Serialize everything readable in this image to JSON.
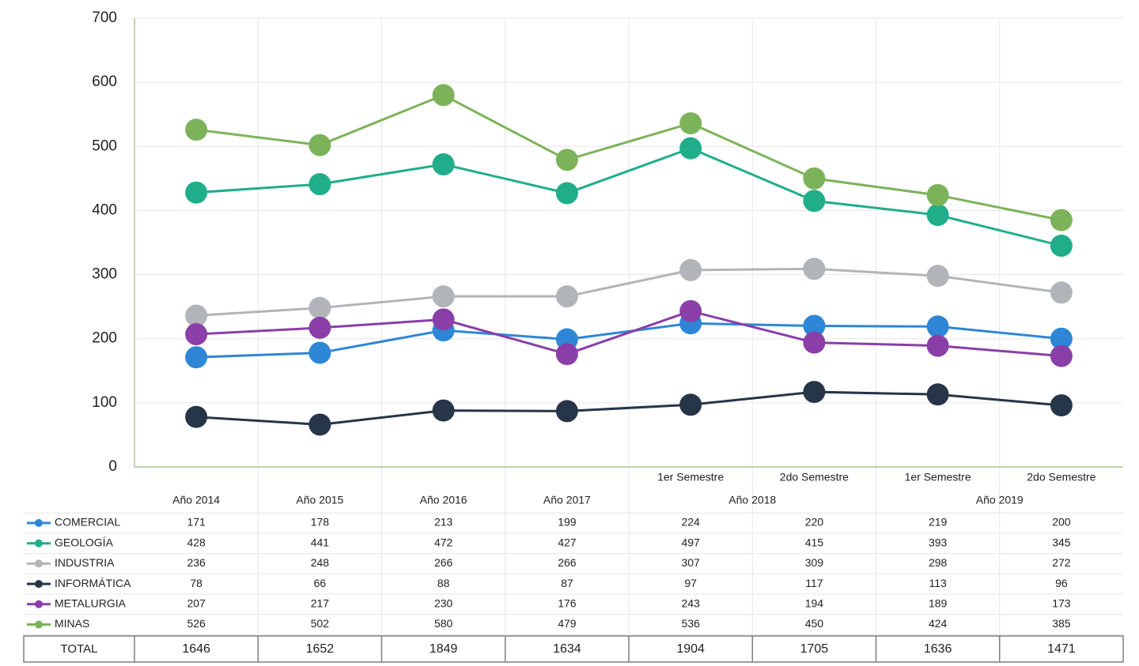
{
  "chart_data": {
    "type": "line",
    "category_groups": [
      {
        "label": "Año 2014"
      },
      {
        "label": "Año 2015"
      },
      {
        "label": "Año 2016"
      },
      {
        "label": "Año 2017"
      },
      {
        "label": "Año 2018",
        "sub": [
          "1er Semestre",
          "2do Semestre"
        ]
      },
      {
        "label": "Año 2019",
        "sub": [
          "1er Semestre",
          "2do Semestre"
        ]
      }
    ],
    "series": [
      {
        "name": "COMERCIAL",
        "color": "#2e86d6",
        "values": [
          171,
          178,
          213,
          199,
          224,
          220,
          219,
          200
        ]
      },
      {
        "name": "GEOLOGÍA",
        "color": "#20ad8a",
        "values": [
          428,
          441,
          472,
          427,
          497,
          415,
          393,
          345
        ]
      },
      {
        "name": "INDUSTRIA",
        "color": "#b1b4b9",
        "values": [
          236,
          248,
          266,
          266,
          307,
          309,
          298,
          272
        ]
      },
      {
        "name": "INFORMÁTICA",
        "color": "#263548",
        "values": [
          78,
          66,
          88,
          87,
          97,
          117,
          113,
          96
        ]
      },
      {
        "name": "METALURGIA",
        "color": "#8a3fa8",
        "values": [
          207,
          217,
          230,
          176,
          243,
          194,
          189,
          173
        ]
      },
      {
        "name": "MINAS",
        "color": "#7cb35a",
        "values": [
          526,
          502,
          580,
          479,
          536,
          450,
          424,
          385
        ]
      }
    ],
    "total": {
      "label": "TOTAL",
      "values": [
        1646,
        1652,
        1849,
        1634,
        1904,
        1705,
        1636,
        1471
      ]
    },
    "ylim": [
      0,
      700
    ],
    "yticks": [
      0,
      100,
      200,
      300,
      400,
      500,
      600,
      700
    ],
    "grid": true
  }
}
